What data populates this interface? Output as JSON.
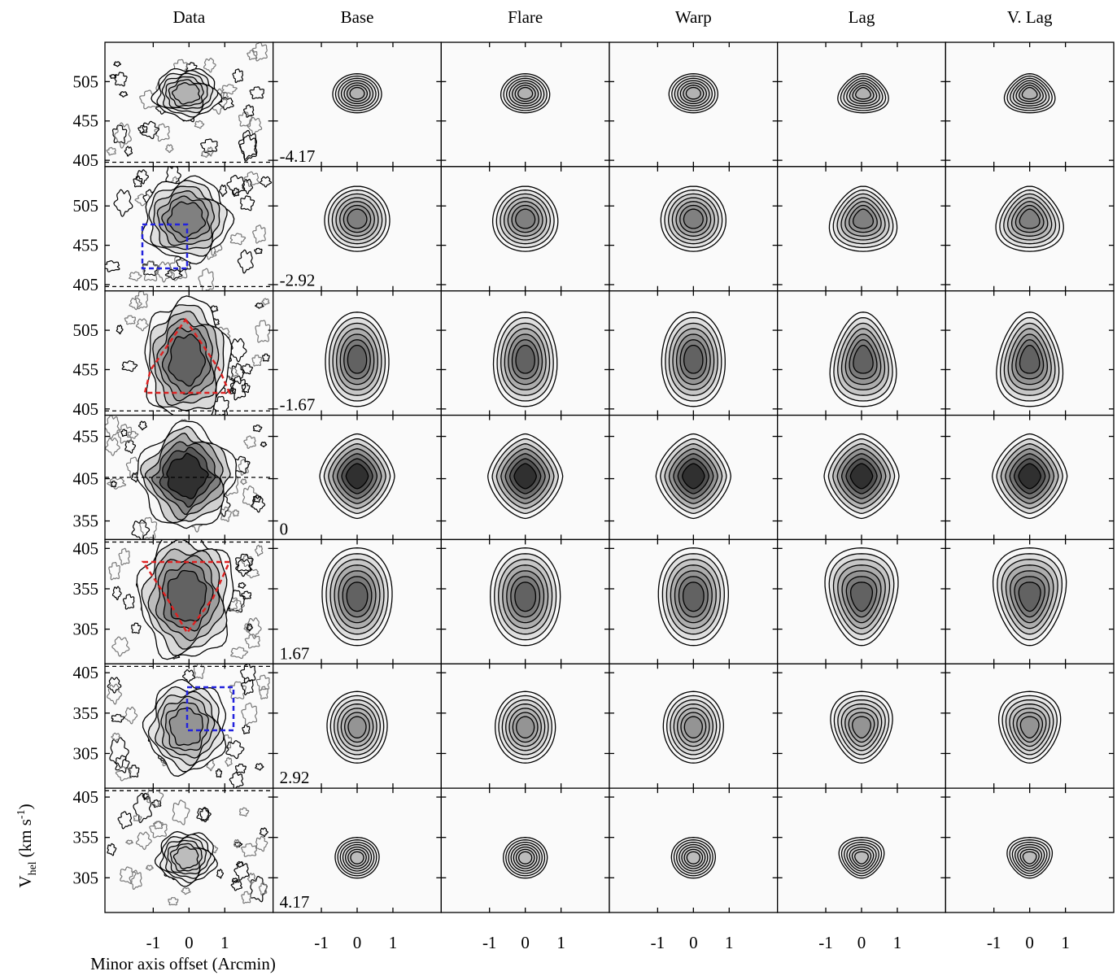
{
  "figure": {
    "columns": [
      "Data",
      "Base",
      "Flare",
      "Warp",
      "Lag",
      "V. Lag"
    ],
    "rows": [
      {
        "offset": "-4.17",
        "ylim": [
          397,
          555
        ],
        "yticks": [
          405,
          455,
          505
        ]
      },
      {
        "offset": "-2.92",
        "ylim": [
          397,
          555
        ],
        "yticks": [
          405,
          455,
          505
        ]
      },
      {
        "offset": "-1.67",
        "ylim": [
          397,
          555
        ],
        "yticks": [
          405,
          455,
          505
        ]
      },
      {
        "offset": "0",
        "ylim": [
          333,
          480
        ],
        "yticks": [
          355,
          405,
          455
        ]
      },
      {
        "offset": "1.67",
        "ylim": [
          262,
          416
        ],
        "yticks": [
          305,
          355,
          405
        ]
      },
      {
        "offset": "2.92",
        "ylim": [
          262,
          416
        ],
        "yticks": [
          305,
          355,
          405
        ]
      },
      {
        "offset": "4.17",
        "ylim": [
          262,
          416
        ],
        "yticks": [
          305,
          355,
          405
        ]
      }
    ],
    "xlim": [
      -2.35,
      2.35
    ],
    "xticks": [
      -1,
      0,
      1
    ],
    "xlabel": "Minor axis offset (Arcmin)",
    "ylabel": {
      "symbol": "V",
      "subscript": "hel",
      "unit": "(km s",
      "exponent": "-1",
      "close": ")"
    }
  }
}
